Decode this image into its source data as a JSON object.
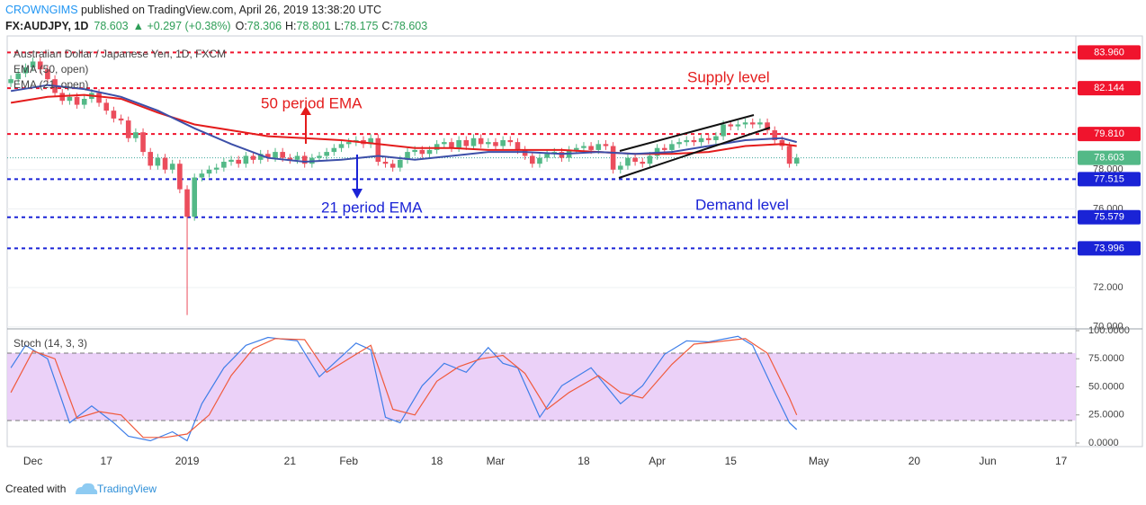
{
  "header": {
    "author": "CROWNGIMS",
    "published": " published on TradingView.com, April 26, 2019 13:38:20 UTC",
    "symbol": "FX:AUDJPY, 1D",
    "price": "78.603",
    "change": "▲ +0.297 (+0.38%)",
    "quote": [
      {
        "k": "O:",
        "v": "78.306"
      },
      {
        "k": "H:",
        "v": "78.801"
      },
      {
        "k": "L:",
        "v": "78.175"
      },
      {
        "k": "C:",
        "v": "78.603"
      }
    ]
  },
  "footer": {
    "created": "Created with",
    "brand": "TradingView"
  },
  "annotations": {
    "supply": "Supply level",
    "demand": "Demand level",
    "ema50": "50 period EMA",
    "ema21": "21 period EMA"
  },
  "chart_data": [
    {
      "type": "candlestick",
      "title": "Australian Dollar / Japanese Yen, 1D, FXCM",
      "up_color": "#53b987",
      "down_color": "#eb4d5c",
      "xlim": [
        -0.5,
        145
      ],
      "ylim": [
        69.9,
        84.8
      ],
      "xticks": [
        {
          "value": 3,
          "label": "Dec"
        },
        {
          "value": 13,
          "label": "17"
        },
        {
          "value": 24,
          "label": "2019"
        },
        {
          "value": 38,
          "label": "21"
        },
        {
          "value": 46,
          "label": "Feb"
        },
        {
          "value": 58,
          "label": "18"
        },
        {
          "value": 66,
          "label": "Mar"
        },
        {
          "value": 78,
          "label": "18"
        },
        {
          "value": 88,
          "label": "Apr"
        },
        {
          "value": 98,
          "label": "15"
        },
        {
          "value": 110,
          "label": "May"
        },
        {
          "value": 123,
          "label": "20"
        },
        {
          "value": 133,
          "label": "Jun"
        },
        {
          "value": 143,
          "label": "17"
        }
      ],
      "yticks": [
        {
          "value": 70,
          "label": "70.000"
        },
        {
          "value": 72,
          "label": "72.000"
        },
        {
          "value": 76,
          "label": "76.000"
        },
        {
          "value": 78,
          "label": "78.000"
        }
      ],
      "grid": true,
      "last_price": 78.603,
      "last_color": "#53b987",
      "levels": [
        {
          "value": 83.96,
          "label": "83.960",
          "color": "#f0142d"
        },
        {
          "value": 82.144,
          "label": "82.144",
          "color": "#f0142d"
        },
        {
          "value": 79.81,
          "label": "79.810",
          "color": "#f0142d"
        },
        {
          "value": 77.515,
          "label": "77.515",
          "color": "#1a23d6"
        },
        {
          "value": 75.579,
          "label": "75.579",
          "color": "#1a23d6"
        },
        {
          "value": 73.996,
          "label": "73.996",
          "color": "#1a23d6"
        }
      ],
      "ohlc": [
        [
          82.4,
          82.8,
          82.2,
          82.6
        ],
        [
          82.6,
          83.1,
          82.4,
          82.9
        ],
        [
          82.9,
          83.4,
          82.7,
          83.2
        ],
        [
          83.2,
          83.7,
          83.0,
          83.5
        ],
        [
          83.5,
          83.7,
          82.9,
          83.1
        ],
        [
          83.1,
          83.3,
          82.4,
          82.6
        ],
        [
          82.6,
          82.8,
          81.7,
          81.9
        ],
        [
          81.9,
          82.1,
          81.3,
          81.5
        ],
        [
          81.5,
          81.9,
          81.3,
          81.7
        ],
        [
          81.7,
          81.9,
          81.1,
          81.3
        ],
        [
          81.3,
          81.8,
          81.1,
          81.6
        ],
        [
          81.6,
          82.1,
          81.4,
          81.9
        ],
        [
          81.9,
          82.1,
          81.2,
          81.4
        ],
        [
          81.4,
          81.6,
          80.8,
          81.0
        ],
        [
          81.0,
          81.2,
          80.4,
          80.6
        ],
        [
          80.6,
          80.8,
          80.3,
          80.5
        ],
        [
          80.5,
          80.7,
          79.4,
          79.6
        ],
        [
          79.6,
          80.1,
          79.4,
          79.9
        ],
        [
          79.9,
          80.1,
          78.7,
          78.9
        ],
        [
          78.9,
          79.1,
          78.0,
          78.2
        ],
        [
          78.2,
          78.8,
          78.0,
          78.6
        ],
        [
          78.6,
          78.8,
          77.8,
          78.0
        ],
        [
          78.0,
          78.5,
          77.8,
          78.3
        ],
        [
          78.3,
          78.5,
          76.8,
          77.0
        ],
        [
          77.0,
          77.2,
          70.6,
          75.6
        ],
        [
          75.6,
          77.8,
          75.4,
          77.6
        ],
        [
          77.6,
          78.0,
          77.4,
          77.8
        ],
        [
          77.8,
          78.2,
          77.6,
          78.0
        ],
        [
          78.0,
          78.3,
          77.8,
          78.1
        ],
        [
          78.1,
          78.6,
          77.9,
          78.4
        ],
        [
          78.4,
          78.7,
          78.2,
          78.5
        ],
        [
          78.5,
          78.7,
          78.1,
          78.3
        ],
        [
          78.3,
          78.9,
          78.1,
          78.7
        ],
        [
          78.7,
          78.9,
          78.3,
          78.5
        ],
        [
          78.5,
          79.0,
          78.3,
          78.8
        ],
        [
          78.8,
          79.0,
          78.4,
          78.6
        ],
        [
          78.6,
          79.1,
          78.4,
          78.9
        ],
        [
          78.9,
          79.1,
          78.4,
          78.6
        ],
        [
          78.6,
          78.8,
          78.3,
          78.5
        ],
        [
          78.5,
          78.9,
          78.3,
          78.7
        ],
        [
          78.7,
          78.9,
          78.1,
          78.3
        ],
        [
          78.3,
          78.8,
          78.1,
          78.6
        ],
        [
          78.6,
          78.9,
          78.4,
          78.7
        ],
        [
          78.7,
          79.1,
          78.5,
          78.9
        ],
        [
          78.9,
          79.3,
          78.7,
          79.1
        ],
        [
          79.1,
          79.5,
          78.9,
          79.3
        ],
        [
          79.3,
          79.6,
          79.1,
          79.4
        ],
        [
          79.4,
          79.7,
          79.2,
          79.5
        ],
        [
          79.5,
          79.7,
          79.1,
          79.3
        ],
        [
          79.3,
          79.8,
          79.1,
          79.6
        ],
        [
          79.6,
          79.8,
          78.2,
          78.4
        ],
        [
          78.4,
          78.6,
          78.1,
          78.3
        ],
        [
          78.3,
          78.5,
          77.9,
          78.1
        ],
        [
          78.1,
          78.7,
          77.9,
          78.5
        ],
        [
          78.5,
          79.1,
          78.3,
          78.9
        ],
        [
          78.9,
          79.2,
          78.7,
          79.0
        ],
        [
          79.0,
          79.2,
          78.6,
          78.8
        ],
        [
          78.8,
          79.2,
          78.6,
          79.0
        ],
        [
          79.0,
          79.5,
          78.8,
          79.3
        ],
        [
          79.3,
          79.6,
          79.1,
          79.4
        ],
        [
          79.4,
          79.6,
          78.9,
          79.1
        ],
        [
          79.1,
          79.7,
          78.9,
          79.5
        ],
        [
          79.5,
          79.7,
          79.0,
          79.2
        ],
        [
          79.2,
          79.8,
          79.0,
          79.6
        ],
        [
          79.6,
          79.8,
          79.1,
          79.3
        ],
        [
          79.3,
          79.6,
          79.1,
          79.4
        ],
        [
          79.4,
          79.6,
          79.0,
          79.2
        ],
        [
          79.2,
          79.7,
          79.0,
          79.5
        ],
        [
          79.5,
          79.7,
          79.2,
          79.4
        ],
        [
          79.4,
          79.6,
          78.8,
          79.0
        ],
        [
          79.0,
          79.2,
          78.5,
          78.7
        ],
        [
          78.7,
          78.9,
          78.1,
          78.3
        ],
        [
          78.3,
          78.8,
          78.1,
          78.6
        ],
        [
          78.6,
          79.0,
          78.4,
          78.8
        ],
        [
          78.8,
          79.1,
          78.6,
          78.9
        ],
        [
          78.9,
          79.1,
          78.4,
          78.6
        ],
        [
          78.6,
          79.2,
          78.4,
          79.0
        ],
        [
          79.0,
          79.3,
          78.8,
          79.1
        ],
        [
          79.1,
          79.4,
          78.9,
          79.2
        ],
        [
          79.2,
          79.4,
          78.8,
          79.0
        ],
        [
          79.0,
          79.5,
          78.8,
          79.3
        ],
        [
          79.3,
          79.5,
          79.0,
          79.2
        ],
        [
          79.2,
          79.4,
          77.8,
          78.0
        ],
        [
          78.0,
          78.4,
          77.8,
          78.2
        ],
        [
          78.2,
          78.8,
          78.0,
          78.6
        ],
        [
          78.6,
          78.8,
          78.2,
          78.4
        ],
        [
          78.4,
          78.6,
          78.1,
          78.3
        ],
        [
          78.3,
          78.9,
          78.1,
          78.7
        ],
        [
          78.7,
          79.3,
          78.5,
          79.1
        ],
        [
          79.1,
          79.3,
          78.8,
          79.0
        ],
        [
          79.0,
          79.5,
          78.8,
          79.3
        ],
        [
          79.3,
          79.6,
          79.1,
          79.4
        ],
        [
          79.4,
          79.7,
          79.2,
          79.5
        ],
        [
          79.5,
          79.7,
          79.2,
          79.4
        ],
        [
          79.4,
          79.8,
          79.2,
          79.6
        ],
        [
          79.6,
          79.8,
          79.3,
          79.5
        ],
        [
          79.5,
          79.9,
          79.3,
          79.7
        ],
        [
          79.7,
          80.5,
          79.5,
          80.3
        ],
        [
          80.3,
          80.5,
          80.0,
          80.2
        ],
        [
          80.2,
          80.5,
          80.0,
          80.3
        ],
        [
          80.3,
          80.6,
          80.1,
          80.4
        ],
        [
          80.4,
          80.6,
          80.1,
          80.3
        ],
        [
          80.3,
          80.6,
          80.1,
          80.4
        ],
        [
          80.4,
          80.6,
          79.8,
          80.0
        ],
        [
          80.0,
          80.2,
          79.3,
          79.5
        ],
        [
          79.5,
          79.7,
          79.0,
          79.2
        ],
        [
          79.2,
          79.4,
          78.1,
          78.3
        ],
        [
          78.306,
          78.801,
          78.175,
          78.603
        ]
      ],
      "series": [
        {
          "name": "EMA (50, open)",
          "color": "#e41c1c",
          "x": [
            0,
            5,
            10,
            15,
            20,
            25,
            30,
            35,
            40,
            45,
            50,
            55,
            60,
            65,
            70,
            75,
            80,
            85,
            90,
            95,
            100,
            105,
            107
          ],
          "values": [
            81.4,
            81.7,
            81.8,
            81.6,
            80.9,
            80.3,
            80.0,
            79.7,
            79.6,
            79.5,
            79.3,
            79.1,
            79.1,
            79.0,
            79.0,
            79.0,
            78.9,
            78.8,
            78.8,
            78.9,
            79.2,
            79.3,
            79.2
          ]
        },
        {
          "name": "EMA (21, open)",
          "color": "#3c4fa8",
          "x": [
            0,
            5,
            10,
            15,
            20,
            25,
            30,
            35,
            40,
            45,
            50,
            55,
            60,
            65,
            70,
            75,
            80,
            85,
            90,
            95,
            100,
            105,
            107
          ],
          "values": [
            82.0,
            82.3,
            82.1,
            81.7,
            81.0,
            80.1,
            79.3,
            78.6,
            78.4,
            78.5,
            78.7,
            78.5,
            78.7,
            78.9,
            78.9,
            78.8,
            78.9,
            78.8,
            78.9,
            79.2,
            79.5,
            79.6,
            79.4
          ]
        }
      ]
    },
    {
      "type": "line",
      "title": "Stoch (14, 3, 3)",
      "ylim": [
        -3.2,
        101.6
      ],
      "yticks": [
        {
          "value": 100,
          "label": "100.0000"
        },
        {
          "value": 75,
          "label": "75.0000"
        },
        {
          "value": 50,
          "label": "50.0000"
        },
        {
          "value": 25,
          "label": "25.0000"
        },
        {
          "value": 0,
          "label": "0.0000"
        }
      ],
      "band": [
        80,
        20
      ],
      "band_color": "#e7c9f7",
      "series": [
        {
          "color": "#3f7ee8",
          "x": [
            0,
            2,
            5,
            8,
            11,
            14,
            16,
            19,
            22,
            24,
            26,
            29,
            32,
            35,
            39,
            42,
            44,
            47,
            49,
            51,
            53,
            56,
            59,
            62,
            65,
            67,
            69,
            72,
            75,
            79,
            81,
            83,
            86,
            89,
            92,
            95,
            99,
            101,
            104,
            106,
            107
          ],
          "values": [
            67,
            87,
            75,
            18,
            33,
            18,
            6,
            2,
            10,
            2,
            35,
            67,
            87,
            94,
            91,
            59,
            71,
            89,
            83,
            23,
            18,
            51,
            71,
            63,
            85,
            71,
            67,
            23,
            51,
            67,
            51,
            35,
            51,
            79,
            91,
            90,
            95,
            87,
            45,
            18,
            12
          ]
        },
        {
          "color": "#f05a3c",
          "x": [
            0,
            3,
            6,
            9,
            12,
            15,
            18,
            21,
            24,
            27,
            30,
            33,
            36,
            40,
            43,
            46,
            49,
            52,
            55,
            58,
            61,
            64,
            67,
            70,
            73,
            76,
            80,
            83,
            86,
            90,
            93,
            96,
            100,
            103,
            106,
            107
          ],
          "values": [
            45,
            82,
            75,
            22,
            28,
            25,
            5,
            5,
            8,
            25,
            60,
            84,
            93,
            92,
            63,
            75,
            87,
            30,
            25,
            55,
            68,
            75,
            78,
            62,
            30,
            45,
            60,
            45,
            40,
            70,
            88,
            90,
            93,
            80,
            40,
            25
          ]
        }
      ]
    }
  ]
}
